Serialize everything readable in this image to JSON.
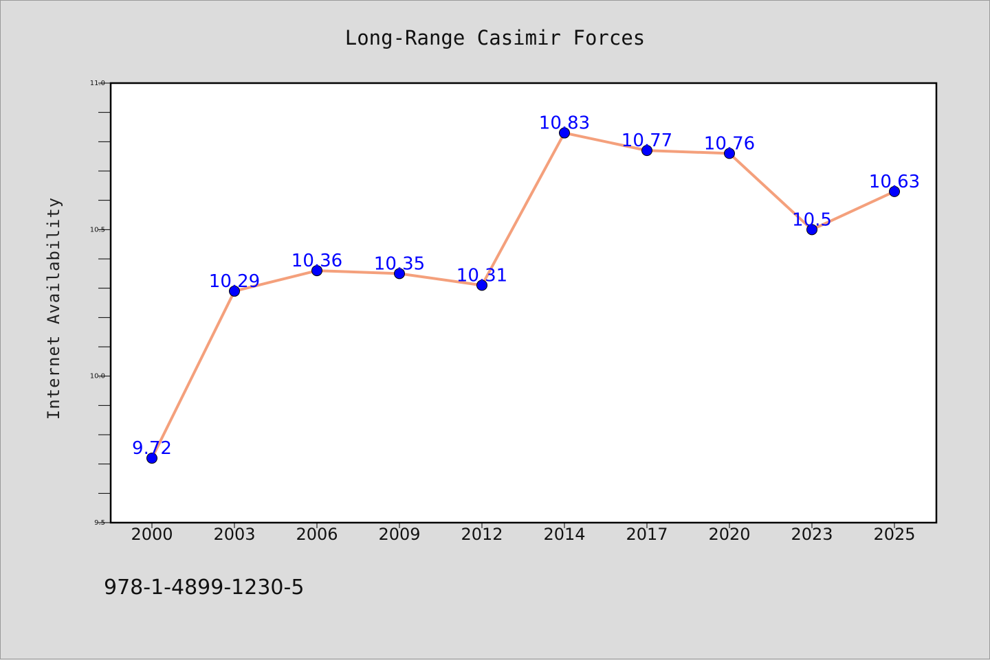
{
  "chart_data": {
    "type": "line",
    "title": "Long-Range Casimir Forces",
    "xlabel": "",
    "ylabel": "Internet Availability",
    "categories": [
      "2000",
      "2003",
      "2006",
      "2009",
      "2012",
      "2014",
      "2017",
      "2020",
      "2023",
      "2025"
    ],
    "series": [
      {
        "values": [
          9.72,
          10.29,
          10.36,
          10.35,
          10.31,
          10.83,
          10.77,
          10.76,
          10.5,
          10.63
        ],
        "data_labels": [
          "9.72",
          "10.29",
          "10.36",
          "10.35",
          "10.31",
          "10.83",
          "10.77",
          "10.76",
          "10.5",
          "10.63"
        ],
        "line_color": "#f4a07c",
        "marker_color": "#0000ff"
      }
    ],
    "ylim": [
      9.5,
      11.0
    ],
    "yticks": [
      "9.5",
      "10.0",
      "10.5",
      "11.0"
    ],
    "grid": false,
    "legend": "none"
  },
  "footer": {
    "isbn": "978-1-4899-1230-5"
  },
  "colors": {
    "background": "#dcdcdc",
    "plot_background": "#ffffff",
    "data_label": "#0000ff"
  }
}
